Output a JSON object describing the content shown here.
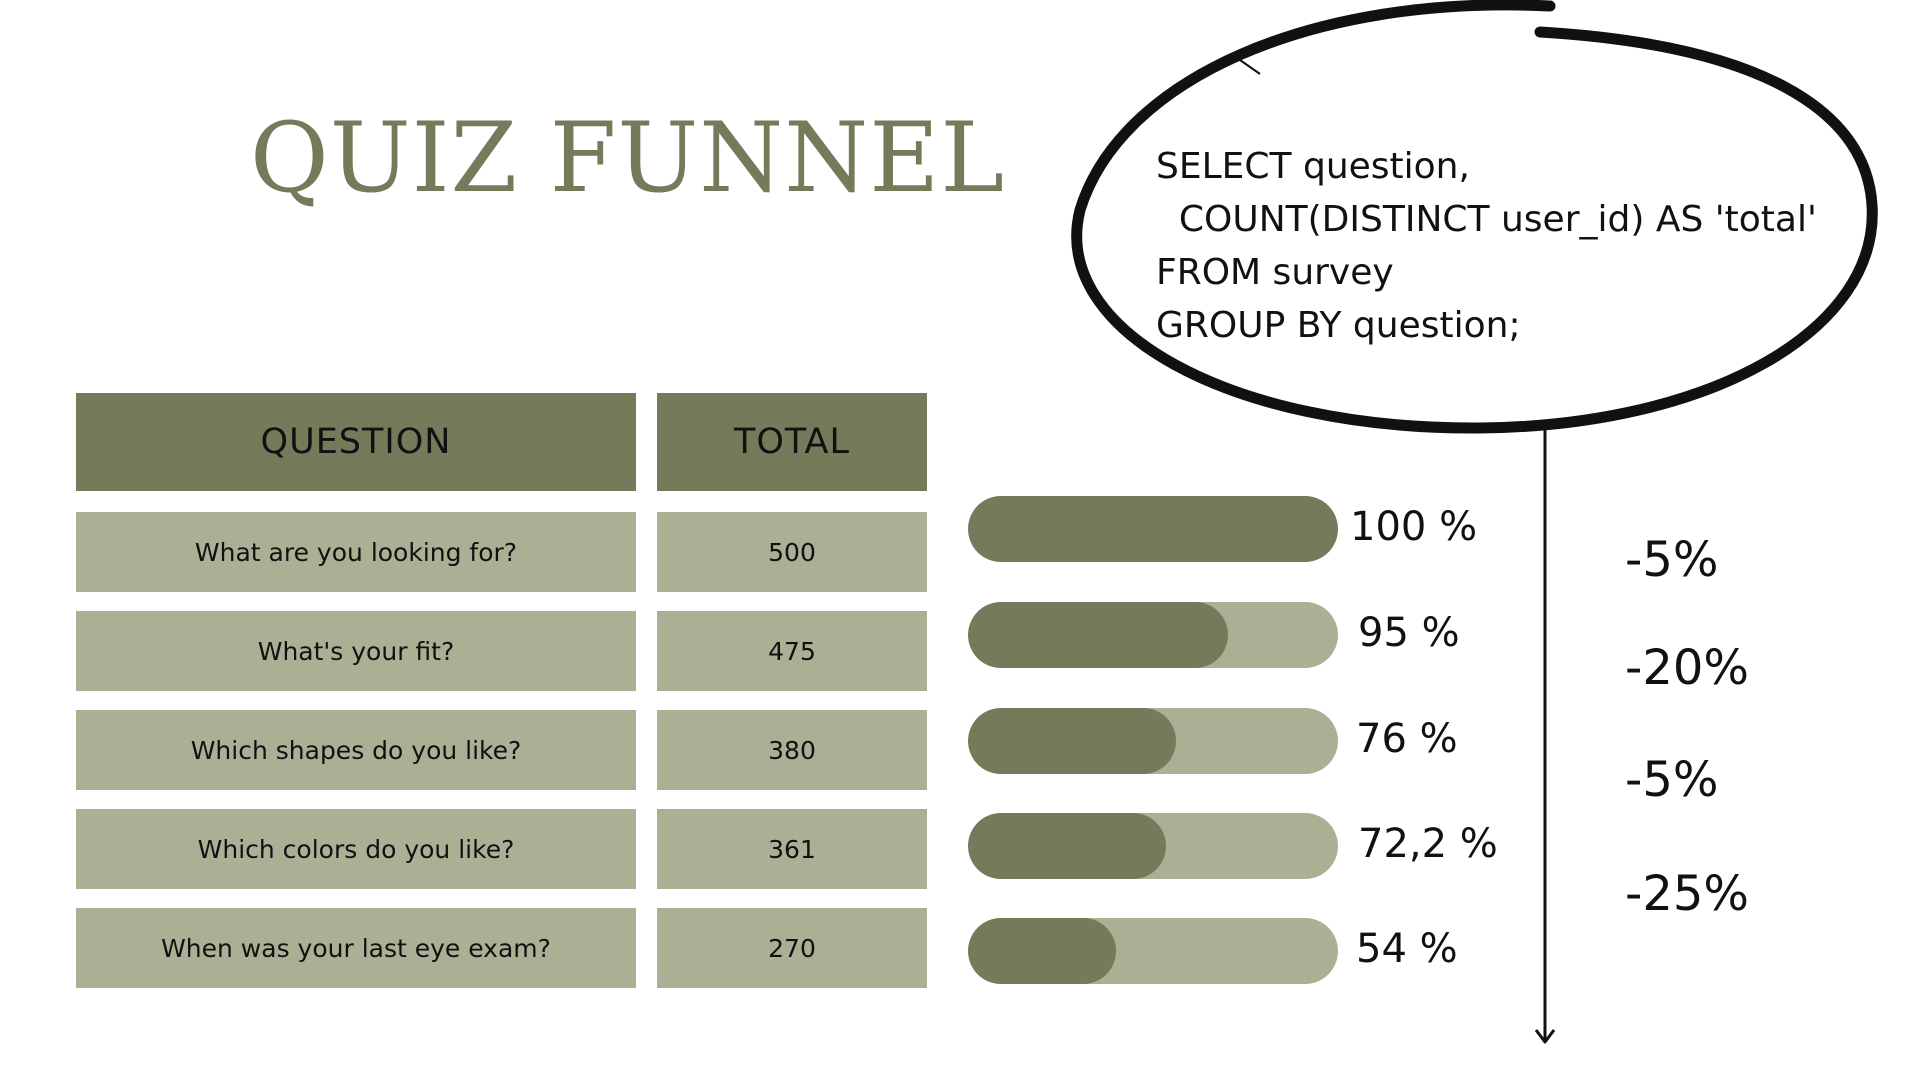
{
  "title": "QUIZ FUNNEL",
  "table": {
    "headers": [
      "QUESTION",
      "TOTAL"
    ],
    "rows": [
      {
        "question": "What are you looking for?",
        "total": "500"
      },
      {
        "question": "What's your fit?",
        "total": "475"
      },
      {
        "question": "Which shapes do you like?",
        "total": "380"
      },
      {
        "question": "Which colors do you like?",
        "total": "361"
      },
      {
        "question": "When was your last eye exam?",
        "total": "270"
      }
    ]
  },
  "funnel": [
    {
      "label": "100 %",
      "value": 100
    },
    {
      "label": "95 %",
      "value": 95
    },
    {
      "label": "76 %",
      "value": 76
    },
    {
      "label": "72,2 %",
      "value": 72.2
    },
    {
      "label": "54 %",
      "value": 54
    }
  ],
  "drops": [
    "-5%",
    "-20%",
    "-5%",
    "-25%"
  ],
  "sql": [
    "SELECT question,",
    "  COUNT(DISTINCT user_id) AS 'total'",
    "FROM survey",
    "GROUP BY question;"
  ],
  "colors": {
    "dark": "#737b5a",
    "light": "#abb095"
  }
}
